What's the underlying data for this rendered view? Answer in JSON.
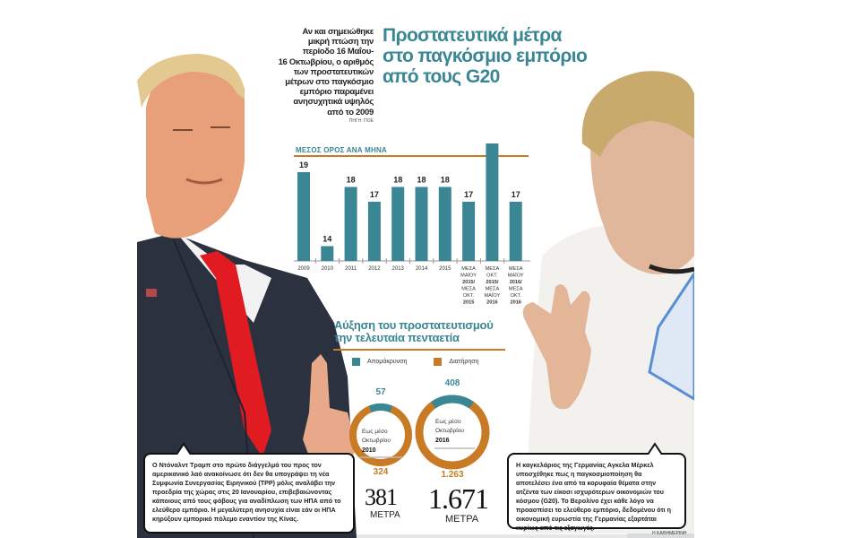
{
  "header": {
    "title": "Προστατευτικά μέτρα στο παγκόσμιο εμπόριο από τους G20",
    "title_lines": [
      "Προστατευτικά μέτρα",
      "στο παγκόσμιο εμπόριο",
      "από τους G20"
    ],
    "intro_lines": [
      "Αν και σημειώθηκε",
      "μικρή πτώση την",
      "περίοδο 16 Μαΐου-",
      "16 Οκτωβρίου, ο αριθμός",
      "των προστατευτικών",
      "μέτρων στο παγκόσμιο",
      "εμπόριο παραμένει",
      "ανησυχητικά υψηλός",
      "από το 2009"
    ],
    "source": "ΠΗΓΗ: ΠΟΕ"
  },
  "colors": {
    "teal": "#3a8694",
    "orange": "#c97a24",
    "text": "#222222"
  },
  "chart_data": [
    {
      "type": "bar",
      "title": "ΜΕΣΟΣ ΟΡΟΣ ΑΝΑ ΜΗΝΑ",
      "categories": [
        "2009",
        "2010",
        "2011",
        "2012",
        "2013",
        "2014",
        "2015",
        "ΜΕΣΑ ΜΑΪΟΥ 2015/ ΜΕΣΑ ΟΚΤ. 2015",
        "ΜΕΣΑ ΟΚΤ. 2015/ ΜΕΣΑ ΜΑΪΟΥ 2016",
        "ΜΕΣΑ ΜΑΪΟΥ 2016/ ΜΕΣΑ ΟΚΤ. 2016"
      ],
      "category_lines": [
        [
          "2009"
        ],
        [
          "2010"
        ],
        [
          "2011"
        ],
        [
          "2012"
        ],
        [
          "2013"
        ],
        [
          "2014"
        ],
        [
          "2015"
        ],
        [
          "ΜΕΣΑ",
          "ΜΑΪΟΥ",
          "2015/",
          "ΜΕΣΑ",
          "ΟΚΤ.",
          "2015"
        ],
        [
          "ΜΕΣΑ",
          "ΟΚΤ.",
          "2015/",
          "ΜΕΣΑ",
          "ΜΑΪΟΥ",
          "2016"
        ],
        [
          "ΜΕΣΑ",
          "ΜΑΪΟΥ",
          "2016/",
          "ΜΕΣΑ",
          "ΟΚΤ.",
          "2016"
        ]
      ],
      "values": [
        19,
        14,
        18,
        17,
        18,
        18,
        18,
        17,
        21,
        17
      ],
      "xlabel": "",
      "ylabel": "",
      "grid": false,
      "color": "#3a8694"
    },
    {
      "type": "pie",
      "title": "Αύξηση του προστατευτισμού την τελευταία πενταετία",
      "legend": [
        "Απομάκρυνση",
        "Διατήρηση"
      ],
      "series": [
        {
          "name": "Εως μέσο Οκτωβρίου 2010",
          "label_lines": [
            "Εως μέσο",
            "Οκτωβρίου",
            "2010"
          ],
          "values": [
            57,
            324
          ],
          "total": 381,
          "total_label": "381",
          "unit": "ΜΕΤΡΑ"
        },
        {
          "name": "Εως μέσο Οκτωβρίου 2016",
          "label_lines": [
            "Εως μέσο",
            "Οκτωβρίου",
            "2016"
          ],
          "values": [
            408,
            1263
          ],
          "value_labels": [
            "408",
            "1.263"
          ],
          "total": 1671,
          "total_label": "1.671",
          "unit": "ΜΕΤΡΑ"
        }
      ]
    }
  ],
  "donuts": {
    "title_lines": [
      "Αύξηση του προστατευτισμού",
      "την τελευταία πενταετία"
    ],
    "legend": {
      "removal": "Απομάκρυνση",
      "retention": "Διατήρηση"
    },
    "d2010": {
      "removal": "57",
      "retention": "324",
      "l1": "Εως μέσο",
      "l2": "Οκτωβρίου",
      "l3": "2010",
      "total": "381",
      "unit": "ΜΕΤΡΑ"
    },
    "d2016": {
      "removal": "408",
      "retention": "1.263",
      "l1": "Εως μέσο",
      "l2": "Οκτωβρίου",
      "l3": "2016",
      "total": "1.671",
      "unit": "ΜΕΤΡΑ"
    }
  },
  "captions": {
    "trump": "Ο Ντόναλντ Τραμπ στο πρώτο διάγγελμά του προς τον αμερικανικό λαό ανακοίνωσε ότι δεν θα υπογράψει τη νέα Συμφωνία Συνεργασίας Ειρηνικού (TPP) μόλις αναλάβει την προεδρία της χώρας στις 20 Ιανουαρίου, επιβεβαιώνοντας κάποιους από τους φόβους για αναδίπλωση των ΗΠΑ από το ελεύθερο εμπόριο. Η μεγαλύτερη ανησυχία είναι εάν οι ΗΠΑ κηρύξουν εμπορικό πόλεμο εναντίον της Κίνας.",
    "merkel": "Η καγκελάριος της Γερμανίας Αγκελα Μέρκελ υποσχέθηκε πως η παγκοσμιοποίηση θα αποτελέσει ένα από τα κορυφαία θέματα στην ατζέντα των είκοσι ισχυρότερων οικονομιών του κόσμου (G20). Το Βερολίνο έχει κάθε λόγο να προασπίσει το ελεύθερο εμπόριο, δεδομένου ότι η οικονομική ευρωστία της Γερμανίας εξαρτάται κυρίως από τις εξαγωγές."
  },
  "credit": "Η ΚΑΘΗΜΕΡΙΝΗ",
  "photos": {
    "left": "Donald Trump photo",
    "right": "Angela Merkel photo"
  }
}
